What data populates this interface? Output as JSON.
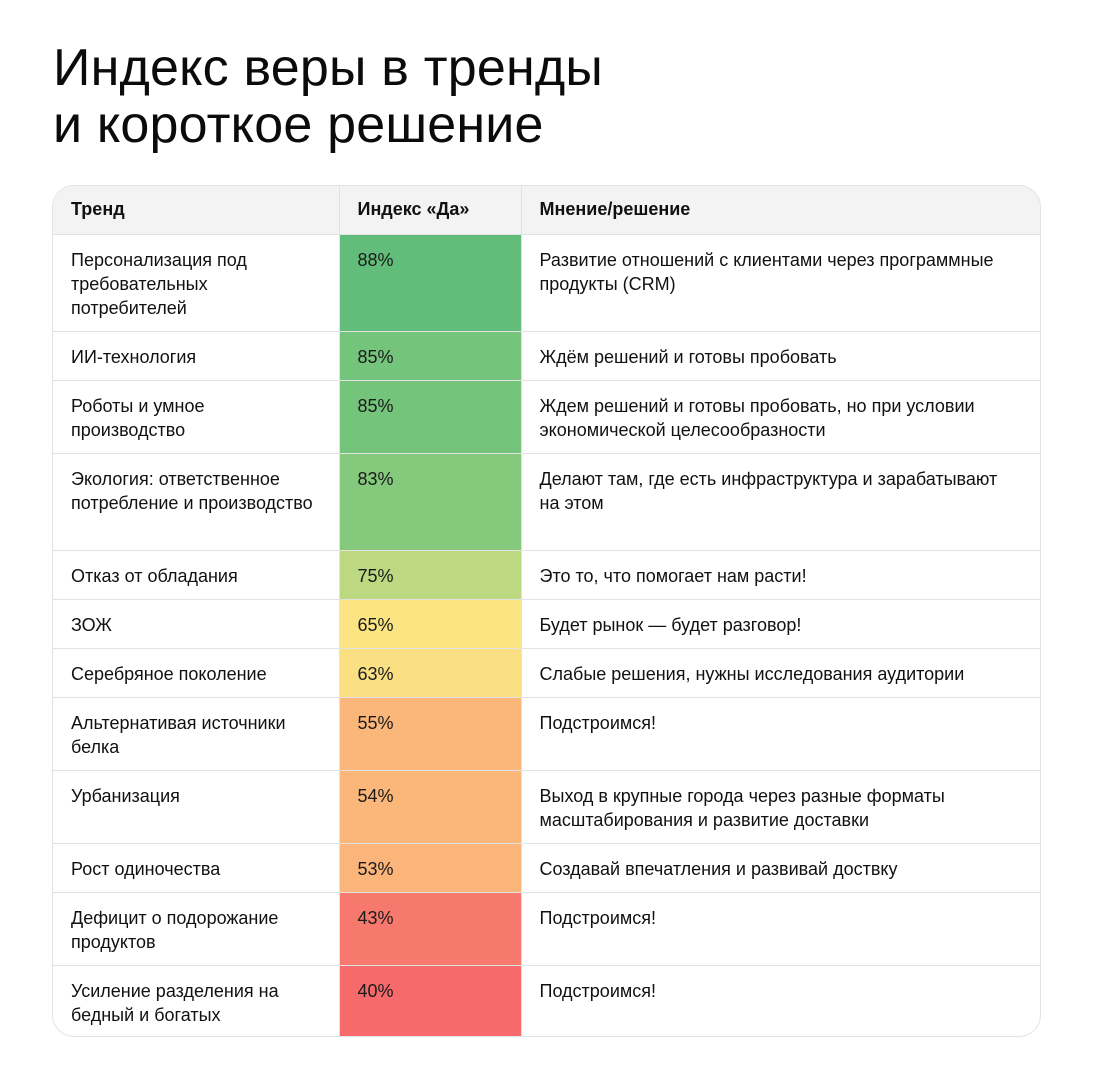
{
  "title": {
    "line1": "Индекс веры в тренды",
    "line2": "и короткое решение"
  },
  "table": {
    "headers": [
      "Тренд",
      "Индекс «Да»",
      "Мнение/решение"
    ],
    "rows": [
      {
        "trend": "Персонализация под требовательных потребителей",
        "index": "88%",
        "decision": "Развитие отношений с клиентами через программные продукты (CRM)",
        "color": "#63bd7a"
      },
      {
        "trend": "ИИ-технология",
        "index": "85%",
        "decision": "Ждём решений и готовы пробовать",
        "color": "#74c47c"
      },
      {
        "trend": "Роботы и умное производство",
        "index": "85%",
        "decision": "Ждем решений и готовы пробовать, но при условии экономической целесообразности",
        "color": "#74c47c"
      },
      {
        "trend": "Экология: ответственное потребление и производство",
        "index": "83%",
        "decision": "Делают там, где есть инфраструктура и зарабатывают на этом",
        "color": "#85c97c"
      },
      {
        "trend": "Отказ от обладания",
        "index": "75%",
        "decision": "Это то, что помогает нам расти!",
        "color": "#bcd880"
      },
      {
        "trend": "ЗОЖ",
        "index": "65%",
        "decision": "Будет рынок — будет разговор!",
        "color": "#fbe583"
      },
      {
        "trend": "Серебряное поколение",
        "index": "63%",
        "decision": "Слабые решения, нужны исследования аудитории",
        "color": "#fadf83"
      },
      {
        "trend": "Альтернативая источники белка",
        "index": "55%",
        "decision": "Подстроимся!",
        "color": "#fbb77a"
      },
      {
        "trend": "Урбанизация",
        "index": "54%",
        "decision": "Выход в крупные города через разные форматы масштабирования и развитие доставки",
        "color": "#fbb77a"
      },
      {
        "trend": "Рост одиночества",
        "index": "53%",
        "decision": "Создавай впечатления и развивай доствку",
        "color": "#fbb47a"
      },
      {
        "trend": "Дефицит о подорожание продуктов",
        "index": "43%",
        "decision": "Подстроимся!",
        "color": "#f7796e"
      },
      {
        "trend": "Усиление разделения на бедный и богатых",
        "index": "40%",
        "decision": "Подстроимся!",
        "color": "#f66a6b"
      }
    ]
  }
}
